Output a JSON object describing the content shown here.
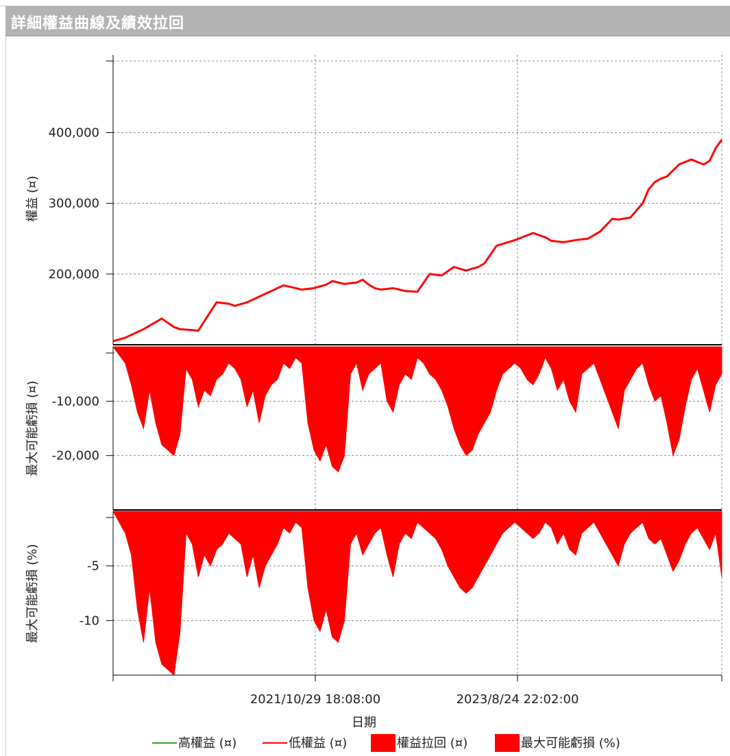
{
  "title": "詳細權益曲線及績效拉回",
  "chart_data": [
    {
      "type": "line",
      "ylabel": "權益 (¤)",
      "yticks": [
        200000,
        300000,
        400000
      ],
      "ytick_labels": [
        "200,000",
        "300,000",
        "400,000"
      ],
      "ylim": [
        100000,
        510000
      ],
      "series": [
        {
          "name": "高權益 (¤)",
          "color": "#2ca02c"
        },
        {
          "name": "低權益 (¤)",
          "color": "#ff0000",
          "x": [
            0,
            0.02,
            0.05,
            0.08,
            0.1,
            0.11,
            0.14,
            0.17,
            0.19,
            0.2,
            0.22,
            0.25,
            0.28,
            0.3,
            0.31,
            0.33,
            0.35,
            0.36,
            0.38,
            0.4,
            0.41,
            0.42,
            0.43,
            0.44,
            0.46,
            0.48,
            0.5,
            0.52,
            0.54,
            0.56,
            0.58,
            0.6,
            0.61,
            0.63,
            0.66,
            0.69,
            0.71,
            0.72,
            0.74,
            0.76,
            0.78,
            0.79,
            0.8,
            0.82,
            0.83,
            0.85,
            0.87,
            0.88,
            0.89,
            0.9,
            0.91,
            0.93,
            0.95,
            0.97,
            0.98,
            0.99,
            1.0
          ],
          "y": [
            105000,
            110000,
            122000,
            137000,
            125000,
            122000,
            120000,
            160000,
            158000,
            155000,
            160000,
            172000,
            184000,
            180000,
            178000,
            180000,
            185000,
            190000,
            186000,
            188000,
            192000,
            185000,
            180000,
            178000,
            180000,
            176000,
            175000,
            200000,
            198000,
            210000,
            205000,
            210000,
            215000,
            240000,
            248000,
            258000,
            252000,
            247000,
            245000,
            248000,
            250000,
            255000,
            260000,
            278000,
            277000,
            280000,
            300000,
            320000,
            330000,
            335000,
            338000,
            355000,
            362000,
            355000,
            360000,
            378000,
            390000
          ]
        }
      ]
    },
    {
      "type": "area",
      "ylabel": "最大可能虧損 (¤)",
      "yticks": [
        -10000,
        -20000
      ],
      "ytick_labels": [
        "-10,000",
        "-20,000"
      ],
      "ylim": [
        -30000,
        0
      ],
      "series": [
        {
          "name": "權益拉回 (¤)",
          "color": "#ff0000",
          "x": [
            0,
            0.02,
            0.03,
            0.04,
            0.05,
            0.06,
            0.07,
            0.08,
            0.09,
            0.1,
            0.11,
            0.12,
            0.13,
            0.14,
            0.15,
            0.16,
            0.17,
            0.18,
            0.19,
            0.2,
            0.21,
            0.22,
            0.23,
            0.24,
            0.25,
            0.26,
            0.27,
            0.28,
            0.29,
            0.3,
            0.31,
            0.32,
            0.33,
            0.34,
            0.35,
            0.36,
            0.37,
            0.38,
            0.39,
            0.4,
            0.41,
            0.42,
            0.43,
            0.44,
            0.45,
            0.46,
            0.47,
            0.48,
            0.49,
            0.5,
            0.51,
            0.52,
            0.53,
            0.54,
            0.55,
            0.56,
            0.57,
            0.58,
            0.59,
            0.6,
            0.61,
            0.62,
            0.63,
            0.64,
            0.65,
            0.66,
            0.67,
            0.68,
            0.69,
            0.7,
            0.71,
            0.72,
            0.73,
            0.74,
            0.75,
            0.76,
            0.77,
            0.78,
            0.79,
            0.8,
            0.81,
            0.82,
            0.83,
            0.84,
            0.85,
            0.86,
            0.87,
            0.88,
            0.89,
            0.9,
            0.91,
            0.92,
            0.93,
            0.94,
            0.95,
            0.96,
            0.97,
            0.98,
            0.99,
            1.0
          ],
          "y": [
            0,
            -3000,
            -7000,
            -12000,
            -15000,
            -8000,
            -14000,
            -18000,
            -19000,
            -20000,
            -16000,
            -4000,
            -6000,
            -11000,
            -8000,
            -9000,
            -6000,
            -5000,
            -3000,
            -4000,
            -6000,
            -11000,
            -8000,
            -14000,
            -9000,
            -7000,
            -6000,
            -3000,
            -4000,
            -2000,
            -3000,
            -14000,
            -19000,
            -21000,
            -18000,
            -22000,
            -23000,
            -20000,
            -5000,
            -3000,
            -8000,
            -5000,
            -4000,
            -3000,
            -10000,
            -12000,
            -7000,
            -5000,
            -6000,
            -2000,
            -3000,
            -5000,
            -6000,
            -8000,
            -11000,
            -15000,
            -18000,
            -20000,
            -19000,
            -16000,
            -14000,
            -12000,
            -8000,
            -5000,
            -4000,
            -3000,
            -4000,
            -6000,
            -7000,
            -5000,
            -2000,
            -4000,
            -8000,
            -6000,
            -10000,
            -12000,
            -5000,
            -4000,
            -3000,
            -6000,
            -9000,
            -12000,
            -15000,
            -8000,
            -6000,
            -4000,
            -3000,
            -7000,
            -10000,
            -9000,
            -14000,
            -20000,
            -17000,
            -11000,
            -6000,
            -4000,
            -8000,
            -12000,
            -7000,
            -5000
          ]
        }
      ]
    },
    {
      "type": "area",
      "ylabel": "最大可能虧損 (%)",
      "yticks": [
        -5,
        -10
      ],
      "ytick_labels": [
        "-5",
        "-10"
      ],
      "ylim": [
        -15,
        0
      ],
      "xlabel": "日期",
      "xtick_labels": [
        "2021/10/29 18:08:00",
        "2023/8/24 22:02:00"
      ],
      "series": [
        {
          "name": "最大可能虧損 (%)",
          "color": "#ff0000",
          "x": [
            0,
            0.02,
            0.03,
            0.04,
            0.05,
            0.06,
            0.07,
            0.08,
            0.09,
            0.1,
            0.11,
            0.12,
            0.13,
            0.14,
            0.15,
            0.16,
            0.17,
            0.18,
            0.19,
            0.2,
            0.21,
            0.22,
            0.23,
            0.24,
            0.25,
            0.26,
            0.27,
            0.28,
            0.29,
            0.3,
            0.31,
            0.32,
            0.33,
            0.34,
            0.35,
            0.36,
            0.37,
            0.38,
            0.39,
            0.4,
            0.41,
            0.42,
            0.43,
            0.44,
            0.45,
            0.46,
            0.47,
            0.48,
            0.49,
            0.5,
            0.51,
            0.52,
            0.53,
            0.54,
            0.55,
            0.56,
            0.57,
            0.58,
            0.59,
            0.6,
            0.61,
            0.62,
            0.63,
            0.64,
            0.65,
            0.66,
            0.67,
            0.68,
            0.69,
            0.7,
            0.71,
            0.72,
            0.73,
            0.74,
            0.75,
            0.76,
            0.77,
            0.78,
            0.79,
            0.8,
            0.81,
            0.82,
            0.83,
            0.84,
            0.85,
            0.86,
            0.87,
            0.88,
            0.89,
            0.9,
            0.91,
            0.92,
            0.93,
            0.94,
            0.95,
            0.96,
            0.97,
            0.98,
            0.99,
            1.0
          ],
          "y": [
            0,
            -2,
            -4,
            -9,
            -12,
            -7,
            -12,
            -14,
            -14.5,
            -15,
            -11,
            -2,
            -3,
            -6,
            -4,
            -5,
            -3.5,
            -3,
            -2,
            -2.5,
            -3,
            -6,
            -4,
            -7,
            -5,
            -4,
            -3,
            -1.5,
            -2,
            -1,
            -1.5,
            -7,
            -10,
            -11,
            -9,
            -11.5,
            -12,
            -10,
            -3,
            -2,
            -4,
            -3,
            -2,
            -1.5,
            -4,
            -6,
            -3,
            -2,
            -2.5,
            -1,
            -1.5,
            -2,
            -2.5,
            -3.5,
            -5,
            -6,
            -7,
            -7.5,
            -7,
            -6,
            -5,
            -4,
            -3,
            -2,
            -1.5,
            -1,
            -1.5,
            -2,
            -2.5,
            -2,
            -1,
            -1.5,
            -3,
            -2,
            -3.5,
            -4,
            -2,
            -1.5,
            -1,
            -2,
            -3,
            -4,
            -5,
            -3,
            -2,
            -1.5,
            -1,
            -2.5,
            -3,
            -2.5,
            -4,
            -5.5,
            -4.5,
            -3,
            -2,
            -1.5,
            -2.5,
            -3.5,
            -2,
            -6
          ]
        }
      ]
    }
  ],
  "legend": {
    "placement": "bottom",
    "items": [
      {
        "label": "高權益 (¤)",
        "kind": "line",
        "color": "#2ca02c"
      },
      {
        "label": "低權益 (¤)",
        "kind": "line",
        "color": "#ff0000"
      },
      {
        "label": "權益拉回 (¤)",
        "kind": "box",
        "color": "#ff0000"
      },
      {
        "label": "最大可能虧損 (%)",
        "kind": "box",
        "color": "#ff0000"
      }
    ]
  }
}
